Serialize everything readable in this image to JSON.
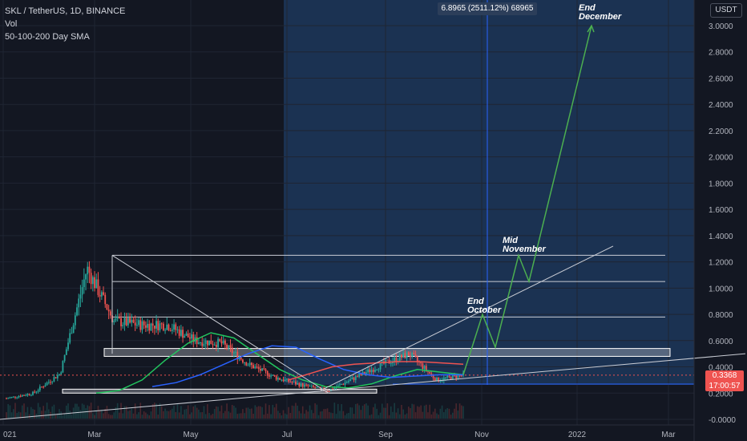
{
  "header": {
    "symbol_line": "SKL / TetherUS, 1D, BINANCE",
    "volume_label": "Vol",
    "sma_label": "50-100-200 Day SMA"
  },
  "toolbar": {
    "currency_badge": "USDT"
  },
  "measure_label": "6.8965 (2511.12%) 68965",
  "current_price": {
    "value": "0.3368",
    "countdown": "17:00:57"
  },
  "annotations": {
    "end_october": [
      "End",
      "October"
    ],
    "mid_november": [
      "Mid",
      "November"
    ],
    "end_december": [
      "End",
      "December"
    ]
  },
  "colors": {
    "background": "#131722",
    "highlight": "#1e3a5f",
    "up": "#26a69a",
    "down": "#ef5350",
    "sma50": "#22c55e",
    "sma100": "#ef5350",
    "sma200": "#2962ff",
    "projection": "#4caf50"
  },
  "chart_data": {
    "type": "candlestick",
    "title": "SKL / TetherUS, 1D, BINANCE",
    "ylim": [
      0,
      3.1
    ],
    "y_ticks": [
      "3.0000",
      "2.8000",
      "2.6000",
      "2.4000",
      "2.2000",
      "2.0000",
      "1.8000",
      "1.6000",
      "1.4000",
      "1.2000",
      "1.0000",
      "0.8000",
      "0.6000",
      "0.4000",
      "0.2000",
      "-0.0000"
    ],
    "x_ticks": [
      "021",
      "Mar",
      "May",
      "Jul",
      "Sep",
      "Nov",
      "2022",
      "Mar"
    ],
    "price_series": [
      {
        "date": "2021-01",
        "value": 0.16
      },
      {
        "date": "2021-02-01",
        "value": 0.2
      },
      {
        "date": "2021-02-20",
        "value": 0.35
      },
      {
        "date": "2021-03-10",
        "value": 1.15
      },
      {
        "date": "2021-03-15",
        "value": 0.75
      },
      {
        "date": "2021-04-01",
        "value": 0.72
      },
      {
        "date": "2021-04-20",
        "value": 0.72
      },
      {
        "date": "2021-05-01",
        "value": 0.6
      },
      {
        "date": "2021-05-15",
        "value": 0.58
      },
      {
        "date": "2021-06-01",
        "value": 0.42
      },
      {
        "date": "2021-06-15",
        "value": 0.32
      },
      {
        "date": "2021-07-01",
        "value": 0.26
      },
      {
        "date": "2021-07-20",
        "value": 0.22
      },
      {
        "date": "2021-08-10",
        "value": 0.32
      },
      {
        "date": "2021-09-01",
        "value": 0.42
      },
      {
        "date": "2021-09-15",
        "value": 0.5
      },
      {
        "date": "2021-10-01",
        "value": 0.3
      },
      {
        "date": "2021-10-20",
        "value": 0.3368
      }
    ],
    "projection_path": [
      {
        "label": "",
        "value": 0.34
      },
      {
        "label": "End October",
        "value": 0.8
      },
      {
        "label": "",
        "value": 0.55
      },
      {
        "label": "Mid November",
        "value": 1.25
      },
      {
        "label": "",
        "value": 1.05
      },
      {
        "label": "End December",
        "value": 3.0
      }
    ],
    "horizontal_levels": [
      1.25,
      1.05,
      0.78
    ],
    "support_zones": [
      [
        0.48,
        0.54
      ],
      [
        0.2,
        0.23
      ]
    ],
    "current_price": 0.3368
  }
}
